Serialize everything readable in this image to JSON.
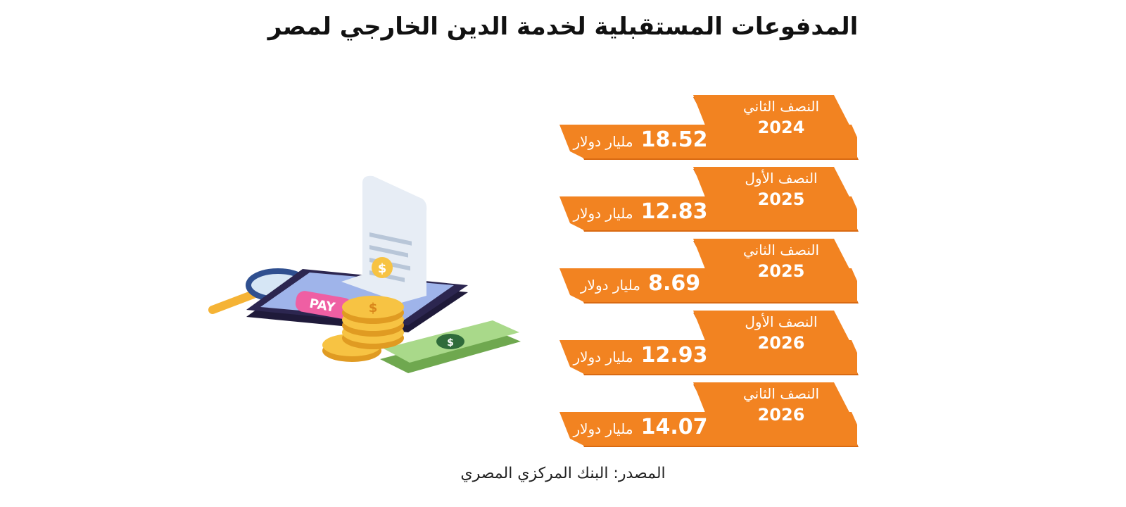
{
  "title": "المدفوعات المستقبلية لخدمة الدين الخارجي لمصر",
  "source": "المصدر: البنك المركزي المصري",
  "colors": {
    "ribbon_front": "#f28321",
    "ribbon_back": "#d96a12",
    "title": "#111111"
  },
  "illustration": {
    "pay_label": "PAY",
    "coin_symbol": "$"
  },
  "chart_data": {
    "type": "table",
    "title": "المدفوعات المستقبلية لخدمة الدين الخارجي لمصر",
    "unit": "مليار دولار",
    "rows": [
      {
        "period": "النصف الثاني",
        "year": "2024",
        "value": "18.52"
      },
      {
        "period": "النصف الأول",
        "year": "2025",
        "value": "12.83"
      },
      {
        "period": "النصف الثاني",
        "year": "2025",
        "value": "8.69"
      },
      {
        "period": "النصف الأول",
        "year": "2026",
        "value": "12.93"
      },
      {
        "period": "النصف الثاني",
        "year": "2026",
        "value": "14.07"
      }
    ]
  }
}
